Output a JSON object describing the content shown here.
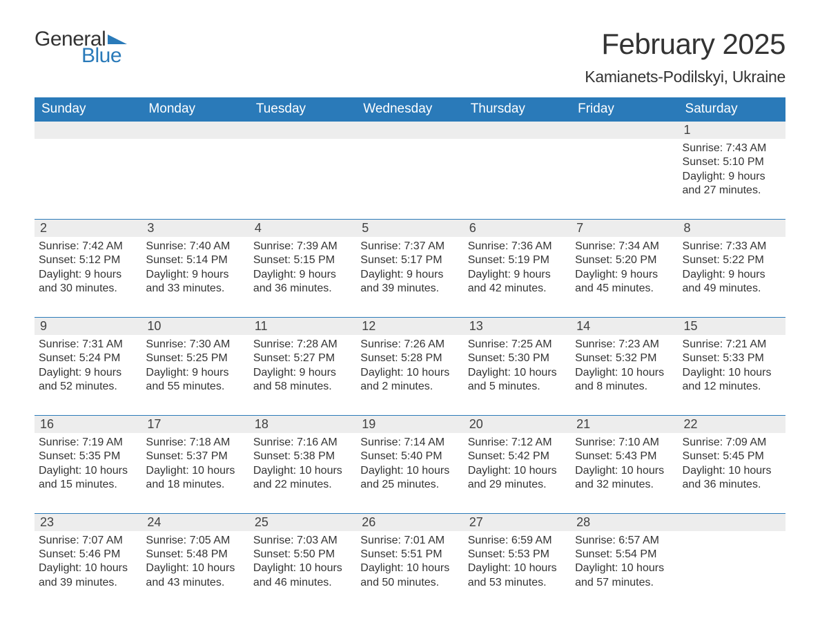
{
  "logo": {
    "general": "General",
    "blue": "Blue"
  },
  "title": "February 2025",
  "location": "Kamianets-Podilskyi, Ukraine",
  "colors": {
    "header_bg": "#2a7ab9",
    "header_text": "#ffffff",
    "daynum_bg": "#ededed",
    "text": "#333333",
    "accent": "#2a7ab9"
  },
  "columns": [
    "Sunday",
    "Monday",
    "Tuesday",
    "Wednesday",
    "Thursday",
    "Friday",
    "Saturday"
  ],
  "weeks": [
    [
      {},
      {},
      {},
      {},
      {},
      {},
      {
        "n": "1",
        "sr": "7:43 AM",
        "ss": "5:10 PM",
        "dl": "9 hours and 27 minutes."
      }
    ],
    [
      {
        "n": "2",
        "sr": "7:42 AM",
        "ss": "5:12 PM",
        "dl": "9 hours and 30 minutes."
      },
      {
        "n": "3",
        "sr": "7:40 AM",
        "ss": "5:14 PM",
        "dl": "9 hours and 33 minutes."
      },
      {
        "n": "4",
        "sr": "7:39 AM",
        "ss": "5:15 PM",
        "dl": "9 hours and 36 minutes."
      },
      {
        "n": "5",
        "sr": "7:37 AM",
        "ss": "5:17 PM",
        "dl": "9 hours and 39 minutes."
      },
      {
        "n": "6",
        "sr": "7:36 AM",
        "ss": "5:19 PM",
        "dl": "9 hours and 42 minutes."
      },
      {
        "n": "7",
        "sr": "7:34 AM",
        "ss": "5:20 PM",
        "dl": "9 hours and 45 minutes."
      },
      {
        "n": "8",
        "sr": "7:33 AM",
        "ss": "5:22 PM",
        "dl": "9 hours and 49 minutes."
      }
    ],
    [
      {
        "n": "9",
        "sr": "7:31 AM",
        "ss": "5:24 PM",
        "dl": "9 hours and 52 minutes."
      },
      {
        "n": "10",
        "sr": "7:30 AM",
        "ss": "5:25 PM",
        "dl": "9 hours and 55 minutes."
      },
      {
        "n": "11",
        "sr": "7:28 AM",
        "ss": "5:27 PM",
        "dl": "9 hours and 58 minutes."
      },
      {
        "n": "12",
        "sr": "7:26 AM",
        "ss": "5:28 PM",
        "dl": "10 hours and 2 minutes."
      },
      {
        "n": "13",
        "sr": "7:25 AM",
        "ss": "5:30 PM",
        "dl": "10 hours and 5 minutes."
      },
      {
        "n": "14",
        "sr": "7:23 AM",
        "ss": "5:32 PM",
        "dl": "10 hours and 8 minutes."
      },
      {
        "n": "15",
        "sr": "7:21 AM",
        "ss": "5:33 PM",
        "dl": "10 hours and 12 minutes."
      }
    ],
    [
      {
        "n": "16",
        "sr": "7:19 AM",
        "ss": "5:35 PM",
        "dl": "10 hours and 15 minutes."
      },
      {
        "n": "17",
        "sr": "7:18 AM",
        "ss": "5:37 PM",
        "dl": "10 hours and 18 minutes."
      },
      {
        "n": "18",
        "sr": "7:16 AM",
        "ss": "5:38 PM",
        "dl": "10 hours and 22 minutes."
      },
      {
        "n": "19",
        "sr": "7:14 AM",
        "ss": "5:40 PM",
        "dl": "10 hours and 25 minutes."
      },
      {
        "n": "20",
        "sr": "7:12 AM",
        "ss": "5:42 PM",
        "dl": "10 hours and 29 minutes."
      },
      {
        "n": "21",
        "sr": "7:10 AM",
        "ss": "5:43 PM",
        "dl": "10 hours and 32 minutes."
      },
      {
        "n": "22",
        "sr": "7:09 AM",
        "ss": "5:45 PM",
        "dl": "10 hours and 36 minutes."
      }
    ],
    [
      {
        "n": "23",
        "sr": "7:07 AM",
        "ss": "5:46 PM",
        "dl": "10 hours and 39 minutes."
      },
      {
        "n": "24",
        "sr": "7:05 AM",
        "ss": "5:48 PM",
        "dl": "10 hours and 43 minutes."
      },
      {
        "n": "25",
        "sr": "7:03 AM",
        "ss": "5:50 PM",
        "dl": "10 hours and 46 minutes."
      },
      {
        "n": "26",
        "sr": "7:01 AM",
        "ss": "5:51 PM",
        "dl": "10 hours and 50 minutes."
      },
      {
        "n": "27",
        "sr": "6:59 AM",
        "ss": "5:53 PM",
        "dl": "10 hours and 53 minutes."
      },
      {
        "n": "28",
        "sr": "6:57 AM",
        "ss": "5:54 PM",
        "dl": "10 hours and 57 minutes."
      },
      {}
    ]
  ],
  "labels": {
    "sunrise": "Sunrise: ",
    "sunset": "Sunset: ",
    "daylight": "Daylight: "
  }
}
